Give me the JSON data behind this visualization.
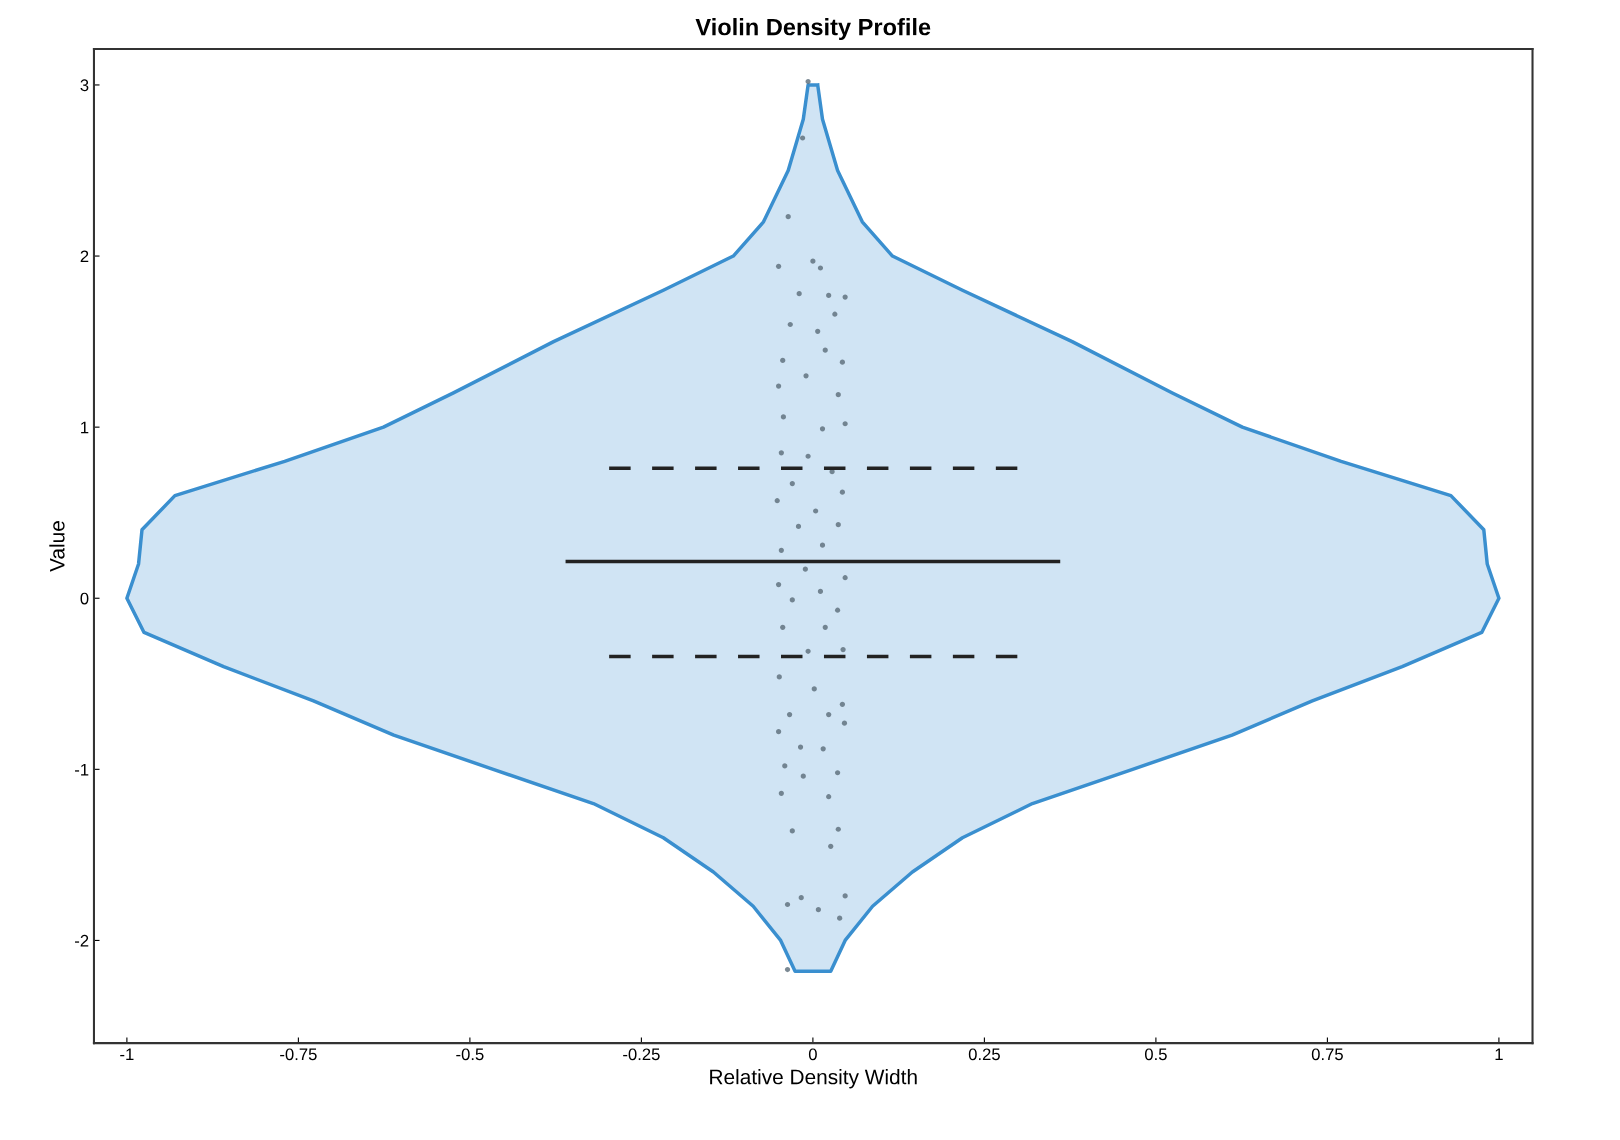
{
  "chart_data": {
    "type": "area",
    "title": "Violin Density Profile",
    "xlabel": "Relative Density Width",
    "ylabel": "Value",
    "xlim": [
      -1.048,
      1.049
    ],
    "ylim": [
      -2.6,
      3.21
    ],
    "xticks": [
      -1,
      -0.75,
      -0.5,
      -0.25,
      0,
      0.25,
      0.5,
      0.75,
      1
    ],
    "yticks": [
      -2,
      -1,
      0,
      1,
      2,
      3
    ],
    "grid": false,
    "legend": false,
    "series": [
      {
        "color": "#3a8fcf",
        "x": [
          0.007,
          0.014,
          0.036,
          0.072,
          0.116,
          0.218,
          0.378,
          0.524,
          0.626,
          0.77,
          0.93,
          0.978,
          0.983,
          1.0,
          0.975,
          0.859,
          0.728,
          0.611,
          0.466,
          0.32,
          0.218,
          0.145,
          0.087,
          0.047,
          0.026,
          -0.026,
          -0.047,
          -0.087,
          -0.145,
          -0.218,
          -0.32,
          -0.466,
          -0.611,
          -0.728,
          -0.859,
          -0.975,
          -1.0,
          -0.983,
          -0.978,
          -0.93,
          -0.77,
          -0.626,
          -0.524,
          -0.378,
          -0.218,
          -0.116,
          -0.072,
          -0.036,
          -0.014,
          -0.007
        ],
        "values": [
          3.0,
          2.8,
          2.5,
          2.2,
          2.0,
          1.8,
          1.5,
          1.2,
          1.0,
          0.8,
          0.6,
          0.4,
          0.2,
          0.0,
          -0.2,
          -0.4,
          -0.6,
          -0.8,
          -1.0,
          -1.2,
          -1.4,
          -1.6,
          -1.8,
          -2.0,
          -2.18,
          -2.18,
          -2.0,
          -1.8,
          -1.6,
          -1.4,
          -1.2,
          -1.0,
          -0.8,
          -0.6,
          -0.4,
          -0.2,
          0.0,
          0.2,
          0.4,
          0.6,
          0.8,
          1.0,
          1.2,
          1.5,
          1.8,
          2.0,
          2.2,
          2.5,
          2.8,
          3.0
        ]
      },
      {
        "type": "scatter",
        "color": "#5a6b78",
        "marker": "circle",
        "x": [
          -0.007,
          -0.015,
          -0.036,
          -0.05,
          0,
          0.011,
          -0.02,
          0.023,
          0.047,
          0.032,
          -0.033,
          0.007,
          -0.044,
          0.018,
          0.043,
          -0.05,
          -0.01,
          0.037,
          -0.043,
          0.014,
          0.047,
          -0.046,
          -0.007,
          0.028,
          -0.03,
          0.043,
          -0.052,
          0.004,
          -0.021,
          0.037,
          -0.046,
          0.014,
          -0.011,
          0.047,
          -0.05,
          0.011,
          -0.03,
          0.036,
          -0.044,
          0.018,
          -0.007,
          0.044,
          -0.049,
          0.002,
          0.043,
          -0.034,
          0.023,
          -0.05,
          0.046,
          -0.018,
          0.015,
          -0.041,
          0.036,
          -0.014,
          -0.046,
          0.023,
          -0.03,
          0.037,
          0.026,
          -0.017,
          -0.037,
          0.008,
          0.047,
          0.039,
          -0.037
        ],
        "values": [
          3.02,
          2.69,
          2.23,
          1.94,
          1.97,
          1.93,
          1.78,
          1.77,
          1.76,
          1.66,
          1.6,
          1.56,
          1.39,
          1.45,
          1.38,
          1.24,
          1.3,
          1.19,
          1.06,
          0.99,
          1.02,
          0.85,
          0.83,
          0.74,
          0.67,
          0.62,
          0.57,
          0.51,
          0.42,
          0.43,
          0.28,
          0.31,
          0.17,
          0.12,
          0.08,
          0.04,
          -0.01,
          -0.07,
          -0.17,
          -0.17,
          -0.31,
          -0.3,
          -0.46,
          -0.53,
          -0.62,
          -0.68,
          -0.68,
          -0.78,
          -0.73,
          -0.87,
          -0.88,
          -0.98,
          -1.02,
          -1.04,
          -1.14,
          -1.16,
          -1.36,
          -1.35,
          -1.45,
          -1.75,
          -1.79,
          -1.82,
          -1.74,
          -1.87,
          -2.17
        ]
      },
      {
        "type": "line",
        "color": "#222222",
        "line_style": "solid",
        "x": [
          -0.358,
          0.358
        ],
        "values": [
          0.215,
          0.215
        ]
      },
      {
        "type": "line",
        "color": "#222222",
        "line_style": "dashed",
        "x": [
          -0.297,
          0.298
        ],
        "values": [
          0.76,
          0.76
        ]
      },
      {
        "type": "line",
        "color": "#222222",
        "line_style": "dashed",
        "x": [
          -0.297,
          0.298
        ],
        "values": [
          -0.34,
          -0.34
        ]
      }
    ]
  }
}
